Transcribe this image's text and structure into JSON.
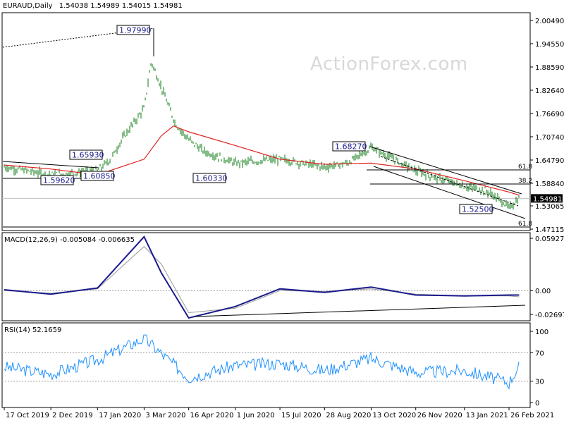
{
  "header": {
    "symbol": "EURAUD,Daily",
    "open": "1.54038",
    "high": "1.54989",
    "low": "1.54015",
    "close": "1.54981"
  },
  "watermark": "ActionForex.com",
  "colors": {
    "price_bars": "#0a7a12",
    "moving_average": "#e02020",
    "macd_line": "#1a1a8c",
    "signal_line": "#999999",
    "rsi_line": "#1e90ff",
    "annotation_text": "#1a1a8c",
    "background": "#ffffff"
  },
  "chart_data": [
    {
      "panel": "main",
      "type": "line",
      "title": "EURAUD,Daily",
      "y_ticks": [
        "2.00490",
        "1.94550",
        "1.88590",
        "1.82640",
        "1.76690",
        "1.70740",
        "1.64790",
        "1.58840",
        "1.53065",
        "1.47115"
      ],
      "ylim": [
        1.46,
        2.03
      ],
      "x_ticks": [
        "17 Oct 2019",
        "2 Dec 2019",
        "17 Jan 2020",
        "3 Mar 2020",
        "16 Apr 2020",
        "1 Jun 2020",
        "15 Jul 2020",
        "28 Aug 2020",
        "13 Oct 2020",
        "26 Nov 2020",
        "13 Jan 2021",
        "26 Feb 2021"
      ],
      "current_price_label": "1.54981",
      "annotations": [
        "1.97990",
        "1.65930",
        "1.59620",
        "1.60850",
        "1.60330",
        "1.68270",
        "1.52500",
        "61.8",
        "38.2",
        "61.8"
      ],
      "series": [
        {
          "x": [
            "17 Oct 2019",
            "2 Dec 2019",
            "17 Jan 2020",
            "30 Jan 2020",
            "10 Feb 2020",
            "3 Mar 2020",
            "10 Mar 2020",
            "19 Mar 2020",
            "3 Apr 2020",
            "16 Apr 2020",
            "1 May 2020",
            "1 Jun 2020",
            "15 Jul 2020",
            "28 Aug 2020",
            "20 Sep 2020",
            "13 Oct 2020",
            "26 Nov 2020",
            "13 Jan 2021",
            "3 Feb 2021",
            "20 Feb 2021",
            "26 Feb 2021",
            "8 Mar 2021"
          ],
          "values": [
            1.63,
            1.61,
            1.62,
            1.65,
            1.7,
            1.78,
            1.9,
            1.84,
            1.74,
            1.7,
            1.67,
            1.64,
            1.65,
            1.63,
            1.64,
            1.68,
            1.62,
            1.58,
            1.57,
            1.54,
            1.525,
            1.55
          ]
        },
        {
          "x": [
            "17 Oct 2019",
            "2 Dec 2019",
            "17 Jan 2020",
            "3 Mar 2020",
            "20 Mar 2020",
            "1 Apr 2020",
            "16 Apr 2020",
            "1 Jun 2020",
            "15 Jul 2020",
            "28 Aug 2020",
            "13 Oct 2020",
            "26 Nov 2020",
            "13 Jan 2021",
            "26 Feb 2021",
            "8 Mar 2021"
          ],
          "values": [
            1.635,
            1.625,
            1.61,
            1.65,
            1.71,
            1.735,
            1.72,
            1.685,
            1.65,
            1.637,
            1.64,
            1.625,
            1.595,
            1.566,
            1.558
          ]
        }
      ]
    },
    {
      "panel": "macd",
      "type": "line",
      "title": "MACD(12,26,9) -0.005084 -0.006635",
      "y_ticks": [
        "0.059272",
        "0.00",
        "-0.026978"
      ],
      "ylim": [
        -0.0345,
        0.063
      ],
      "series": [
        {
          "x": [
            "17 Oct 2019",
            "2 Dec 2019",
            "17 Jan 2020",
            "3 Mar 2020",
            "20 Mar 2020",
            "16 Apr 2020",
            "1 Jun 2020",
            "15 Jul 2020",
            "28 Aug 2020",
            "13 Oct 2020",
            "26 Nov 2020",
            "13 Jan 2021",
            "26 Feb 2021",
            "8 Mar 2021"
          ],
          "values": [
            0.001,
            -0.004,
            0.003,
            0.061,
            0.02,
            -0.031,
            -0.018,
            0.002,
            -0.002,
            0.004,
            -0.005,
            -0.006,
            -0.005,
            -0.005
          ]
        },
        {
          "x": [
            "17 Oct 2019",
            "2 Dec 2019",
            "17 Jan 2020",
            "3 Mar 2020",
            "20 Mar 2020",
            "16 Apr 2020",
            "1 Jun 2020",
            "15 Jul 2020",
            "28 Aug 2020",
            "13 Oct 2020",
            "26 Nov 2020",
            "13 Jan 2021",
            "26 Feb 2021",
            "8 Mar 2021"
          ],
          "values": [
            0.0,
            -0.003,
            0.002,
            0.05,
            0.03,
            -0.025,
            -0.02,
            0.0,
            -0.001,
            0.002,
            -0.004,
            -0.006,
            -0.006,
            -0.007
          ]
        }
      ]
    },
    {
      "panel": "rsi",
      "type": "line",
      "title": "RSI(14) 52.1659",
      "y_ticks": [
        "100",
        "70",
        "30",
        "0"
      ],
      "ylim": [
        0,
        100
      ],
      "series": [
        {
          "x": [
            "17 Oct 2019",
            "2 Dec 2019",
            "17 Jan 2020",
            "3 Mar 2020",
            "16 Apr 2020",
            "1 Jun 2020",
            "15 Jul 2020",
            "28 Aug 2020",
            "13 Oct 2020",
            "26 Nov 2020",
            "13 Jan 2021",
            "26 Feb 2021",
            "8 Mar 2021"
          ],
          "values": [
            50,
            40,
            60,
            90,
            35,
            52,
            55,
            45,
            62,
            42,
            45,
            28,
            52
          ]
        }
      ]
    }
  ]
}
